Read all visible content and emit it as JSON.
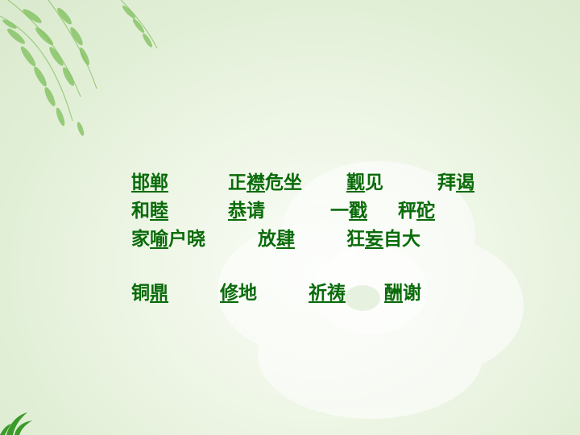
{
  "slide": {
    "rows": [
      [
        {
          "pre": "",
          "u": "邯郸",
          "post": ""
        },
        {
          "pre": "正",
          "u": "襟",
          "post": "危坐"
        },
        {
          "pre": "",
          "u": "觐",
          "post": "见"
        },
        {
          "pre": "拜",
          "u": "谒",
          "post": ""
        }
      ],
      [
        {
          "pre": "和",
          "u": "睦",
          "post": ""
        },
        {
          "pre": "",
          "u": "恭",
          "post": "请"
        },
        {
          "pre": "一",
          "u": "戳",
          "post": ""
        },
        {
          "pre": "秤",
          "u": "砣",
          "post": ""
        }
      ],
      [
        {
          "pre": "家",
          "u": "喻",
          "post": "户晓"
        },
        {
          "pre": "放",
          "u": "肆",
          "post": ""
        },
        {
          "pre": "狂",
          "u": "妄",
          "post": "自大"
        }
      ],
      [
        {
          "pre": "铜",
          "u": "鼎",
          "post": ""
        },
        {
          "pre": "",
          "u": "修",
          "post": "地"
        },
        {
          "pre": "",
          "u": "祈祷",
          "post": ""
        },
        {
          "pre": "",
          "u": "酬",
          "post": "谢"
        }
      ]
    ]
  },
  "colors": {
    "text": "#0a6b0a",
    "background": "#e6f1dc",
    "leaf": "#7dbf5a"
  }
}
